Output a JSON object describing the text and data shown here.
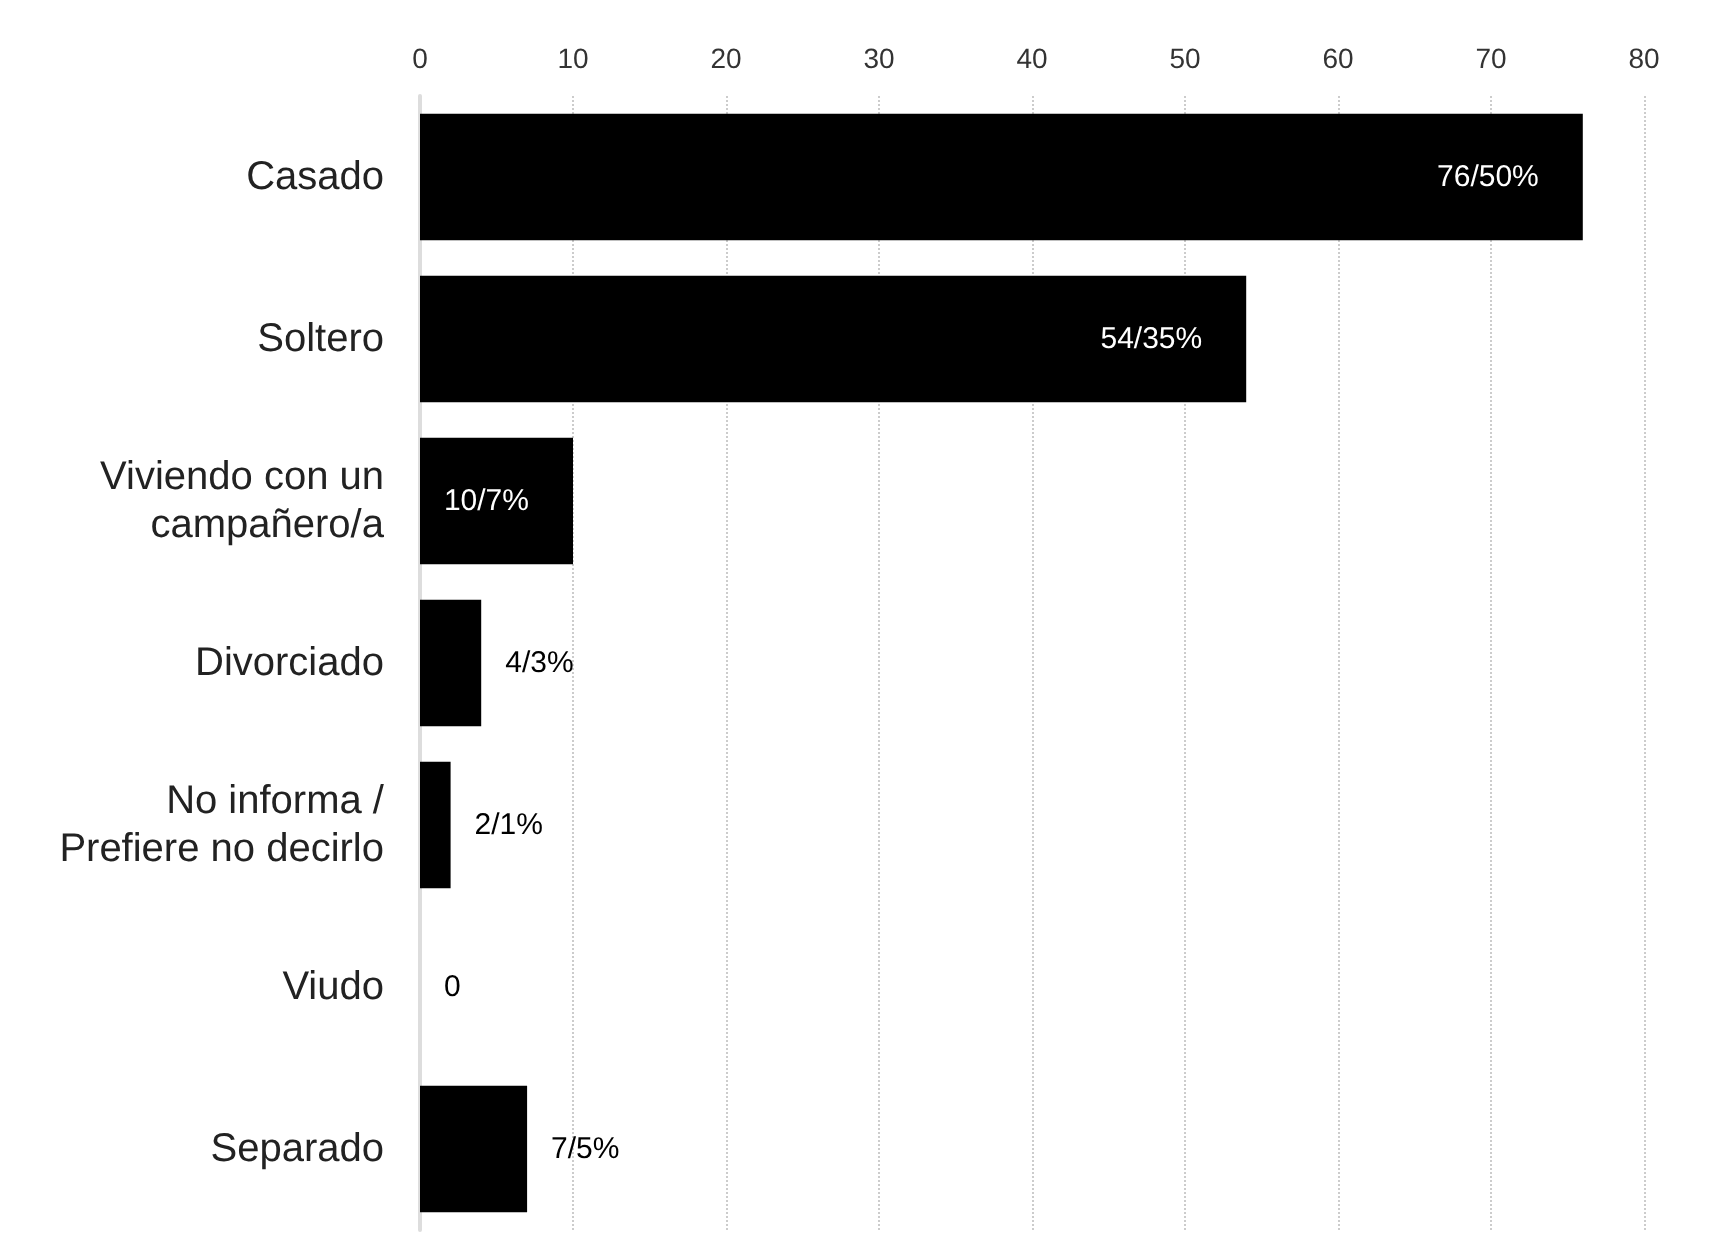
{
  "chart_data": {
    "type": "bar",
    "orientation": "horizontal",
    "categories": [
      "Casado",
      "Soltero",
      "Viviendo con un\ncampañero/a",
      "Divorciado",
      "No informa /\nPrefiere no decirlo",
      "Viudo",
      "Separado"
    ],
    "values": [
      76,
      54,
      10,
      4,
      2,
      0,
      7
    ],
    "value_labels": [
      "76/50%",
      "54/35%",
      "10/7%",
      "4/3%",
      "2/1%",
      "0",
      "7/5%"
    ],
    "color": "#000000",
    "xlim": [
      0,
      80
    ],
    "xticks": [
      0,
      10,
      20,
      30,
      40,
      50,
      60,
      70,
      80
    ],
    "grid": "x"
  }
}
